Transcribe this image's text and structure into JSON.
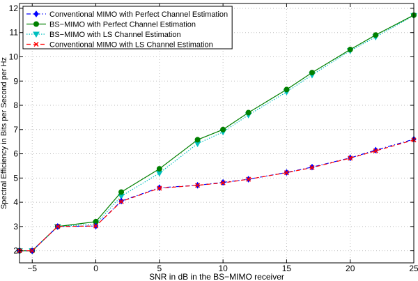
{
  "chart_data": {
    "type": "line",
    "title": "",
    "xlabel": "SNR in dB in the BS−MIMO receiver",
    "ylabel": "Spectral Efficiency in Bits per Second per Hz",
    "xlim": [
      -6,
      25
    ],
    "ylim": [
      1.5,
      12.2
    ],
    "xticks": [
      -5,
      0,
      5,
      10,
      15,
      20,
      25
    ],
    "xtick_labels": [
      "−5",
      "0",
      "5",
      "10",
      "15",
      "20",
      "25"
    ],
    "yticks": [
      2,
      3,
      4,
      5,
      6,
      7,
      8,
      9,
      10,
      11,
      12
    ],
    "ytick_labels": [
      "2",
      "3",
      "4",
      "5",
      "6",
      "7",
      "8",
      "9",
      "10",
      "11",
      "12"
    ],
    "grid": true,
    "legend_position": "top-left",
    "x": [
      -6,
      -5,
      -3,
      0,
      2,
      5,
      8,
      10,
      12,
      15,
      17,
      20,
      22,
      25
    ],
    "series": [
      {
        "name": "Conventional MIMO with Perfect Channel Estimation",
        "color": "#0000ff",
        "marker": "diamond",
        "dash": "6,3,1.5,3",
        "values": [
          2.0,
          2.0,
          3.0,
          3.02,
          4.05,
          4.6,
          4.7,
          4.82,
          4.95,
          5.23,
          5.45,
          5.83,
          6.15,
          6.6
        ]
      },
      {
        "name": "BS−MIMO with Perfect Channel Estimation",
        "color": "#008000",
        "marker": "circle",
        "dash": "",
        "values": [
          2.0,
          2.0,
          3.0,
          3.2,
          4.42,
          5.38,
          6.58,
          7.0,
          7.7,
          8.65,
          9.35,
          10.3,
          10.9,
          11.72
        ]
      },
      {
        "name": "BS−MIMO with LS Channel Estimation",
        "color": "#00bfbf",
        "marker": "triangle-down",
        "dash": "1.5,2",
        "values": [
          2.0,
          2.0,
          3.0,
          3.1,
          4.25,
          5.2,
          6.42,
          6.9,
          7.6,
          8.55,
          9.25,
          10.25,
          10.82,
          11.7
        ]
      },
      {
        "name": "Conventional MIMO with LS Channel Estimation",
        "color": "#ff0000",
        "marker": "x",
        "dash": "6,4",
        "values": [
          2.0,
          2.0,
          3.0,
          3.02,
          4.03,
          4.58,
          4.7,
          4.8,
          4.95,
          5.22,
          5.43,
          5.82,
          6.12,
          6.57
        ]
      }
    ]
  }
}
